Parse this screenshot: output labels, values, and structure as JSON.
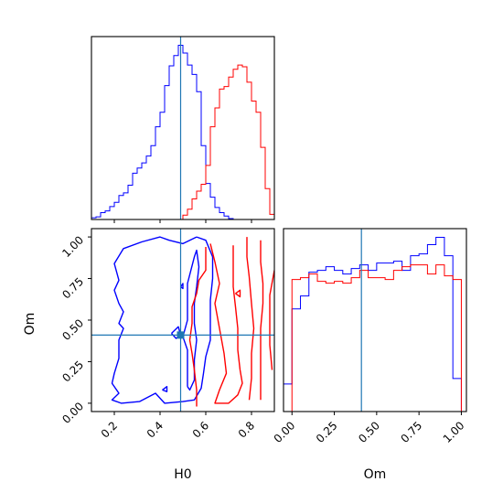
{
  "chart_data": [
    {
      "type": "histogram",
      "panel": "H0 marginal",
      "xlim": [
        0.1,
        0.9
      ],
      "xticks": [
        0.2,
        0.4,
        0.6,
        0.8
      ],
      "yticks_shown": false,
      "truth_x": 0.49,
      "series": [
        {
          "color": "#0000ff",
          "bin_edges": [
            0.09,
            0.12,
            0.14,
            0.16,
            0.18,
            0.2,
            0.22,
            0.24,
            0.26,
            0.28,
            0.3,
            0.32,
            0.34,
            0.36,
            0.38,
            0.4,
            0.42,
            0.44,
            0.46,
            0.48,
            0.5,
            0.52,
            0.54,
            0.56,
            0.58,
            0.6,
            0.62,
            0.64,
            0.66,
            0.68,
            0.7,
            0.72,
            0.74
          ],
          "counts": [
            0.2,
            0.3,
            0.8,
            1.0,
            1.5,
            2.0,
            2.8,
            3.1,
            4.0,
            5.4,
            6.0,
            6.6,
            7.4,
            8.6,
            10.8,
            12.5,
            15.6,
            17.9,
            19.1,
            20.3,
            19.4,
            18.0,
            16.9,
            14.9,
            8.6,
            4.2,
            2.6,
            1.4,
            0.8,
            0.4,
            0.1,
            0.0
          ]
        },
        {
          "color": "#ff0000",
          "bin_edges": [
            0.5,
            0.52,
            0.54,
            0.56,
            0.58,
            0.6,
            0.62,
            0.64,
            0.66,
            0.68,
            0.7,
            0.72,
            0.74,
            0.76,
            0.78,
            0.8,
            0.82,
            0.84,
            0.86,
            0.88,
            0.9
          ],
          "counts": [
            0.5,
            1.2,
            2.4,
            3.3,
            4.1,
            6.3,
            10.8,
            13.0,
            15.2,
            15.5,
            16.6,
            17.5,
            18.0,
            17.8,
            16.0,
            13.8,
            12.5,
            8.4,
            3.6,
            0.6
          ]
        }
      ]
    },
    {
      "type": "contour",
      "panel": "H0 vs Om joint",
      "xlabel": "H0",
      "ylabel": "Om",
      "xlim": [
        0.1,
        0.9
      ],
      "ylim": [
        -0.05,
        1.05
      ],
      "xticks": [
        0.2,
        0.4,
        0.6,
        0.8
      ],
      "yticks": [
        0.0,
        0.25,
        0.5,
        0.75,
        1.0
      ],
      "xtick_labels": [
        "0.2",
        "0.4",
        "0.6",
        "0.8"
      ],
      "ytick_labels": [
        "0.00",
        "0.25",
        "0.50",
        "0.75",
        "1.00"
      ],
      "truth_point": [
        0.49,
        0.41
      ],
      "series": [
        {
          "color": "#0000ff",
          "contours": [
            [
              [
                0.56,
                1.0
              ],
              [
                0.5,
                0.96
              ],
              [
                0.44,
                0.98
              ],
              [
                0.4,
                1.0
              ],
              [
                0.32,
                0.97
              ],
              [
                0.24,
                0.93
              ],
              [
                0.2,
                0.84
              ],
              [
                0.22,
                0.74
              ],
              [
                0.2,
                0.68
              ],
              [
                0.22,
                0.6
              ],
              [
                0.24,
                0.55
              ],
              [
                0.22,
                0.48
              ],
              [
                0.24,
                0.45
              ],
              [
                0.22,
                0.38
              ],
              [
                0.22,
                0.27
              ],
              [
                0.2,
                0.18
              ],
              [
                0.19,
                0.12
              ],
              [
                0.22,
                0.06
              ],
              [
                0.19,
                0.02
              ],
              [
                0.23,
                0.0
              ],
              [
                0.31,
                0.01
              ],
              [
                0.38,
                0.06
              ],
              [
                0.42,
                0.0
              ],
              [
                0.5,
                0.01
              ],
              [
                0.55,
                0.02
              ],
              [
                0.58,
                0.09
              ],
              [
                0.59,
                0.18
              ],
              [
                0.6,
                0.28
              ],
              [
                0.62,
                0.38
              ],
              [
                0.62,
                0.52
              ],
              [
                0.62,
                0.62
              ],
              [
                0.63,
                0.75
              ],
              [
                0.63,
                0.88
              ],
              [
                0.6,
                0.98
              ],
              [
                0.56,
                1.0
              ]
            ],
            [
              [
                0.52,
                0.1
              ],
              [
                0.52,
                0.22
              ],
              [
                0.52,
                0.32
              ],
              [
                0.5,
                0.4
              ],
              [
                0.52,
                0.5
              ],
              [
                0.52,
                0.62
              ],
              [
                0.52,
                0.72
              ],
              [
                0.55,
                0.88
              ],
              [
                0.56,
                0.92
              ],
              [
                0.57,
                0.82
              ],
              [
                0.56,
                0.7
              ],
              [
                0.55,
                0.6
              ],
              [
                0.55,
                0.48
              ],
              [
                0.56,
                0.38
              ],
              [
                0.55,
                0.26
              ],
              [
                0.55,
                0.14
              ],
              [
                0.53,
                0.08
              ],
              [
                0.52,
                0.1
              ]
            ],
            [
              [
                0.45,
                0.42
              ],
              [
                0.48,
                0.46
              ],
              [
                0.49,
                0.41
              ],
              [
                0.47,
                0.39
              ],
              [
                0.45,
                0.42
              ]
            ],
            [
              [
                0.41,
                0.08
              ],
              [
                0.43,
                0.1
              ],
              [
                0.43,
                0.07
              ],
              [
                0.41,
                0.08
              ]
            ],
            [
              [
                0.49,
                0.7
              ],
              [
                0.5,
                0.72
              ],
              [
                0.5,
                0.69
              ],
              [
                0.49,
                0.7
              ]
            ]
          ]
        },
        {
          "color": "#ff0000",
          "contours": [
            [
              [
                0.6,
                0.94
              ],
              [
                0.6,
                0.8
              ],
              [
                0.57,
                0.74
              ],
              [
                0.56,
                0.66
              ],
              [
                0.54,
                0.58
              ],
              [
                0.54,
                0.48
              ],
              [
                0.53,
                0.38
              ],
              [
                0.54,
                0.3
              ],
              [
                0.55,
                0.2
              ],
              [
                0.56,
                0.08
              ],
              [
                0.56,
                -0.02
              ]
            ],
            [
              [
                0.62,
                0.96
              ],
              [
                0.64,
                0.85
              ],
              [
                0.66,
                0.72
              ],
              [
                0.64,
                0.6
              ],
              [
                0.66,
                0.45
              ],
              [
                0.68,
                0.3
              ],
              [
                0.69,
                0.18
              ],
              [
                0.66,
                0.08
              ],
              [
                0.64,
                0.0
              ],
              [
                0.7,
                0.0
              ],
              [
                0.74,
                0.05
              ],
              [
                0.76,
                0.12
              ],
              [
                0.75,
                0.2
              ],
              [
                0.74,
                0.32
              ],
              [
                0.74,
                0.45
              ],
              [
                0.73,
                0.58
              ],
              [
                0.72,
                0.7
              ],
              [
                0.72,
                0.82
              ],
              [
                0.72,
                0.95
              ]
            ],
            [
              [
                0.78,
                1.0
              ],
              [
                0.78,
                0.88
              ],
              [
                0.79,
                0.76
              ],
              [
                0.8,
                0.6
              ],
              [
                0.81,
                0.45
              ],
              [
                0.8,
                0.3
              ],
              [
                0.8,
                0.15
              ],
              [
                0.79,
                0.02
              ]
            ],
            [
              [
                0.84,
                0.98
              ],
              [
                0.84,
                0.85
              ],
              [
                0.85,
                0.72
              ],
              [
                0.85,
                0.6
              ],
              [
                0.84,
                0.45
              ],
              [
                0.84,
                0.3
              ],
              [
                0.84,
                0.15
              ],
              [
                0.84,
                0.02
              ]
            ],
            [
              [
                0.9,
                0.8
              ],
              [
                0.88,
                0.65
              ],
              [
                0.88,
                0.5
              ],
              [
                0.88,
                0.35
              ],
              [
                0.89,
                0.2
              ]
            ],
            [
              [
                0.73,
                0.66
              ],
              [
                0.75,
                0.68
              ],
              [
                0.75,
                0.64
              ],
              [
                0.73,
                0.66
              ]
            ]
          ]
        }
      ]
    },
    {
      "type": "histogram",
      "panel": "Om marginal",
      "xlabel": "Om",
      "xlim": [
        -0.05,
        1.03
      ],
      "xticks": [
        0.0,
        0.25,
        0.5,
        0.75,
        1.0
      ],
      "xtick_labels": [
        "0.00",
        "0.25",
        "0.50",
        "0.75",
        "1.00"
      ],
      "yticks_shown": false,
      "truth_x": 0.41,
      "series": [
        {
          "color": "#0000ff",
          "bin_edges": [
            -0.05,
            0.0,
            0.05,
            0.1,
            0.15,
            0.2,
            0.25,
            0.3,
            0.35,
            0.4,
            0.45,
            0.5,
            0.55,
            0.6,
            0.65,
            0.7,
            0.75,
            0.8,
            0.85,
            0.9,
            0.95,
            1.0
          ],
          "counts": [
            0.15,
            0.56,
            0.63,
            0.76,
            0.77,
            0.79,
            0.77,
            0.75,
            0.78,
            0.8,
            0.77,
            0.81,
            0.81,
            0.82,
            0.77,
            0.85,
            0.86,
            0.91,
            0.95,
            0.85,
            0.18
          ]
        },
        {
          "color": "#ff0000",
          "bin_edges": [
            0.0,
            0.05,
            0.1,
            0.15,
            0.2,
            0.25,
            0.3,
            0.35,
            0.4,
            0.45,
            0.5,
            0.55,
            0.6,
            0.65,
            0.7,
            0.75,
            0.8,
            0.85,
            0.9,
            0.95,
            1.0
          ],
          "counts": [
            0.72,
            0.73,
            0.75,
            0.71,
            0.7,
            0.71,
            0.7,
            0.73,
            0.77,
            0.73,
            0.73,
            0.72,
            0.77,
            0.79,
            0.8,
            0.8,
            0.75,
            0.8,
            0.74,
            0.72
          ]
        }
      ]
    }
  ]
}
